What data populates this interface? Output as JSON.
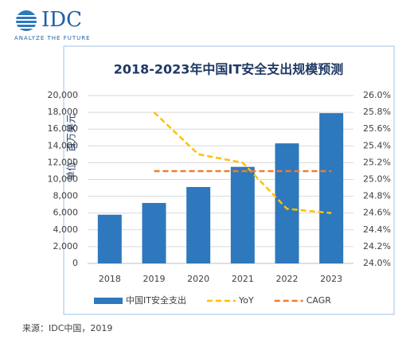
{
  "logo": {
    "name": "IDC",
    "tagline": "ANALYZE THE FUTURE"
  },
  "source": "来源：IDC中国，2019",
  "chart_data": {
    "type": "bar",
    "title": "2018-2023年中国IT安全支出规模预测",
    "y_label": "单位：百万美元",
    "categories": [
      "2018",
      "2019",
      "2020",
      "2021",
      "2022",
      "2023"
    ],
    "series": [
      {
        "name": "中国IT安全支出",
        "type": "bar",
        "color": "#2e78bd",
        "values": [
          5800,
          7200,
          9100,
          11500,
          14300,
          17900
        ]
      },
      {
        "name": "YoY",
        "type": "line",
        "line_style": "dashed",
        "axis": "y2",
        "color": "#ffc000",
        "values": [
          null,
          25.8,
          25.3,
          25.2,
          24.65,
          24.6
        ]
      },
      {
        "name": "CAGR",
        "type": "line",
        "line_style": "dashed",
        "axis": "y2",
        "color": "#ed7d31",
        "values": [
          null,
          25.1,
          25.1,
          25.1,
          25.1,
          25.1
        ]
      }
    ],
    "ylim": [
      0,
      20000
    ],
    "yticks": [
      0,
      {
        "value": 2000,
        "label": "2,000"
      },
      {
        "value": 4000,
        "label": "4,000"
      },
      {
        "value": 6000,
        "label": "6,000"
      },
      {
        "value": 8000,
        "label": "8,000"
      },
      {
        "value": 10000,
        "label": "10,000"
      },
      {
        "value": 12000,
        "label": "12,000"
      },
      {
        "value": 14000,
        "label": "14,000"
      },
      {
        "value": 16000,
        "label": "16,000"
      },
      {
        "value": 18000,
        "label": "18,000"
      },
      {
        "value": 20000,
        "label": "20,000"
      }
    ],
    "y2lim": [
      24.0,
      26.0
    ],
    "y2ticks": [
      {
        "value": 24.0,
        "label": "24.0%"
      },
      {
        "value": 24.2,
        "label": "24.2%"
      },
      {
        "value": 24.4,
        "label": "24.4%"
      },
      {
        "value": 24.6,
        "label": "24.6%"
      },
      {
        "value": 24.8,
        "label": "24.8%"
      },
      {
        "value": 25.0,
        "label": "25.0%"
      },
      {
        "value": 25.2,
        "label": "25.2%"
      },
      {
        "value": 25.4,
        "label": "25.4%"
      },
      {
        "value": 25.6,
        "label": "25.6%"
      },
      {
        "value": 25.8,
        "label": "25.8%"
      },
      {
        "value": 26.0,
        "label": "26.0%"
      }
    ],
    "grid": true,
    "legend": "bottom"
  }
}
